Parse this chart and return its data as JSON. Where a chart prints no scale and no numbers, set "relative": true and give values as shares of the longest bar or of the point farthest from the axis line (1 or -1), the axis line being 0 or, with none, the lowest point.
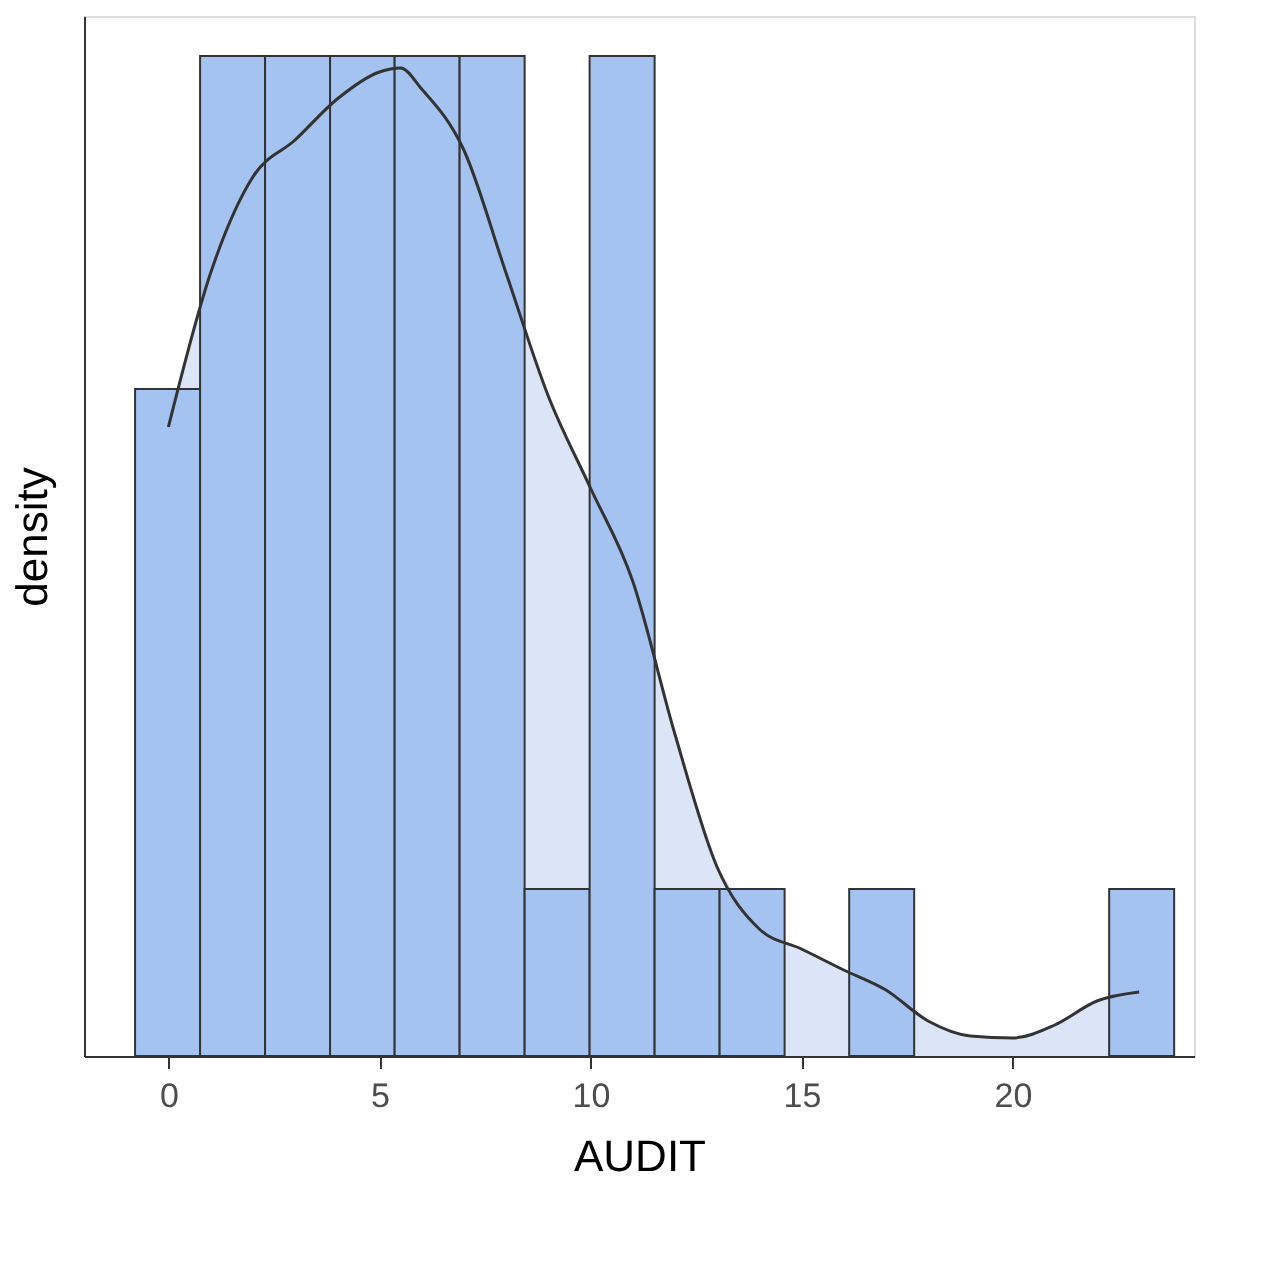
{
  "chart_data": {
    "type": "histogram",
    "xlabel": "AUDIT",
    "ylabel": "density",
    "relative": true,
    "color": "#a4c3f0",
    "bins": [
      -0.79,
      0.75,
      2.29,
      3.83,
      5.36,
      6.9,
      8.44,
      9.98,
      11.52,
      13.06,
      14.6,
      16.13,
      17.67,
      19.21,
      20.75,
      22.29,
      23.83
    ],
    "values": [
      0.667,
      1,
      1,
      1,
      1,
      1,
      0.167,
      1,
      0.167,
      0.167,
      0,
      0.167,
      0,
      0,
      0,
      0.167
    ],
    "xlim": [
      -2,
      24.3
    ],
    "xticks": [
      0,
      5,
      10,
      15,
      20
    ],
    "grid": false,
    "series": [
      {
        "type": "area",
        "color": "#dbe5f7",
        "x": [
          0,
          1,
          2,
          3,
          4,
          5,
          5.5,
          6,
          7,
          8,
          9,
          10,
          11,
          12,
          13,
          14,
          15,
          16,
          17,
          18,
          19,
          20,
          21,
          22,
          23
        ],
        "values": [
          0.629,
          0.783,
          0.879,
          0.916,
          0.957,
          0.984,
          0.988,
          0.967,
          0.906,
          0.783,
          0.66,
          0.568,
          0.475,
          0.322,
          0.189,
          0.127,
          0.107,
          0.086,
          0.066,
          0.035,
          0.02,
          0.018,
          0.031,
          0.055,
          0.064
        ]
      }
    ]
  }
}
